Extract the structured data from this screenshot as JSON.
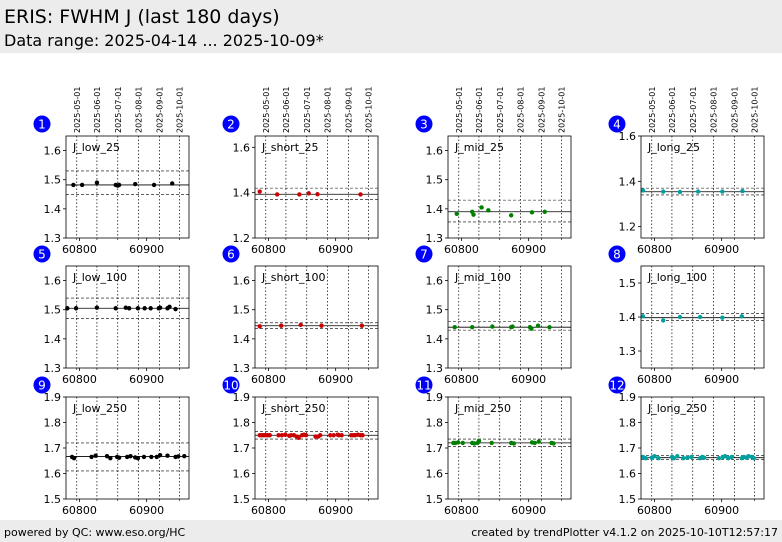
{
  "header": {
    "title": "ERIS: FWHM J (last 180 days)",
    "subtitle": "Data range: 2025-04-14 ... 2025-10-09*"
  },
  "footer": {
    "left": "powered by QC: www.eso.org/HC",
    "right": "created by trendPlotter v4.1.2 on 2025-10-10T12:57:17"
  },
  "date_ticks": [
    "2025-05-01",
    "2025-06-01",
    "2025-07-01",
    "2025-08-01",
    "2025-09-01",
    "2025-10-01"
  ],
  "colors": {
    "J_low": "#000000",
    "J_short": "#cc0000",
    "J_mid": "#008000",
    "J_long": "#00a0a0",
    "badge": "#0000ff"
  },
  "chart_data": [
    {
      "number": "1",
      "type": "scatter",
      "label": "J_low_25",
      "color": "#000000",
      "ylim": [
        1.3,
        1.65
      ],
      "yticks": [
        "1.3",
        "1.4",
        "1.5",
        "1.6"
      ],
      "xlim": [
        60780,
        60963
      ],
      "xticks": [
        "60800",
        "60900"
      ],
      "mean": 1.482,
      "band": [
        1.45,
        1.53
      ],
      "verticals": [
        60796,
        60826,
        60857,
        60888,
        60919,
        60949
      ],
      "x": [
        60791,
        60804,
        60826,
        60854,
        60857,
        60859,
        60883,
        60911,
        60938
      ],
      "y": [
        1.482,
        1.482,
        1.49,
        1.482,
        1.48,
        1.482,
        1.485,
        1.482,
        1.487
      ]
    },
    {
      "number": "2",
      "type": "scatter",
      "label": "J_short_25",
      "color": "#cc0000",
      "ylim": [
        1.2,
        1.65
      ],
      "yticks": [
        "1.2",
        "1.4",
        "1.6"
      ],
      "xlim": [
        60780,
        60963
      ],
      "xticks": [
        "60800",
        "60900"
      ],
      "mean": 1.393,
      "band": [
        1.37,
        1.42
      ],
      "verticals": [
        60796,
        60826,
        60857,
        60888,
        60919,
        60949
      ],
      "x": [
        60787,
        60813,
        60846,
        60860,
        60873,
        60937
      ],
      "y": [
        1.405,
        1.392,
        1.392,
        1.397,
        1.393,
        1.392
      ]
    },
    {
      "number": "3",
      "type": "scatter",
      "label": "J_mid_25",
      "color": "#008000",
      "ylim": [
        1.3,
        1.65
      ],
      "yticks": [
        "1.3",
        "1.4",
        "1.5",
        "1.6"
      ],
      "xlim": [
        60780,
        60963
      ],
      "xticks": [
        "60800",
        "60900"
      ],
      "mean": 1.39,
      "band": [
        1.355,
        1.43
      ],
      "verticals": [
        60796,
        60826,
        60857,
        60888,
        60919,
        60949
      ],
      "x": [
        60793,
        60816,
        60818,
        60830,
        60840,
        60874,
        60905,
        60924
      ],
      "y": [
        1.383,
        1.39,
        1.38,
        1.405,
        1.395,
        1.378,
        1.388,
        1.39
      ]
    },
    {
      "number": "4",
      "type": "scatter",
      "label": "J_long_25",
      "color": "#00a0a0",
      "ylim": [
        1.15,
        1.6
      ],
      "yticks": [
        "1.2",
        "1.4",
        "1.6"
      ],
      "xlim": [
        60780,
        60963
      ],
      "xticks": [
        "60800",
        "60900"
      ],
      "mean": 1.354,
      "band": [
        1.34,
        1.37
      ],
      "verticals": [
        60796,
        60826,
        60857,
        60888,
        60919,
        60949
      ],
      "x": [
        60783,
        60813,
        60838,
        60865,
        60901,
        60931
      ],
      "y": [
        1.36,
        1.355,
        1.353,
        1.355,
        1.355,
        1.357
      ]
    },
    {
      "number": "5",
      "type": "scatter",
      "label": "J_low_100",
      "color": "#000000",
      "ylim": [
        1.3,
        1.65
      ],
      "yticks": [
        "1.3",
        "1.4",
        "1.5",
        "1.6"
      ],
      "xlim": [
        60780,
        60963
      ],
      "xticks": [
        "60800",
        "60900"
      ],
      "mean": 1.505,
      "band": [
        1.47,
        1.54
      ],
      "verticals": [
        60796,
        60826,
        60857,
        60888,
        60919,
        60949
      ],
      "x": [
        60782,
        60795,
        60826,
        60854,
        60869,
        60874,
        60887,
        60897,
        60906,
        60918,
        60920,
        60931,
        60934,
        60943
      ],
      "y": [
        1.505,
        1.505,
        1.507,
        1.505,
        1.507,
        1.505,
        1.505,
        1.505,
        1.505,
        1.505,
        1.507,
        1.505,
        1.51,
        1.502
      ]
    },
    {
      "number": "6",
      "type": "scatter",
      "label": "J_short_100",
      "color": "#cc0000",
      "ylim": [
        1.3,
        1.65
      ],
      "yticks": [
        "1.3",
        "1.4",
        "1.5",
        "1.6"
      ],
      "xlim": [
        60780,
        60963
      ],
      "xticks": [
        "60800",
        "60900"
      ],
      "mean": 1.445,
      "band": [
        1.435,
        1.455
      ],
      "verticals": [
        60796,
        60826,
        60857,
        60888,
        60919,
        60949
      ],
      "x": [
        60787,
        60819,
        60848,
        60879,
        60939
      ],
      "y": [
        1.443,
        1.445,
        1.448,
        1.445,
        1.445
      ]
    },
    {
      "number": "7",
      "type": "scatter",
      "label": "J_mid_100",
      "color": "#008000",
      "ylim": [
        1.3,
        1.65
      ],
      "yticks": [
        "1.3",
        "1.4",
        "1.5",
        "1.6"
      ],
      "xlim": [
        60780,
        60963
      ],
      "xticks": [
        "60800",
        "60900"
      ],
      "mean": 1.44,
      "band": [
        1.43,
        1.46
      ],
      "verticals": [
        60796,
        60826,
        60857,
        60888,
        60919,
        60949
      ],
      "x": [
        60790,
        60816,
        60846,
        60874,
        60876,
        60902,
        60904,
        60914,
        60931
      ],
      "y": [
        1.44,
        1.44,
        1.442,
        1.44,
        1.442,
        1.44,
        1.435,
        1.445,
        1.44
      ]
    },
    {
      "number": "8",
      "type": "scatter",
      "label": "J_long_100",
      "color": "#00a0a0",
      "ylim": [
        1.25,
        1.55
      ],
      "yticks": [
        "1.3",
        "1.4",
        "1.5"
      ],
      "xlim": [
        60780,
        60963
      ],
      "xticks": [
        "60800",
        "60900"
      ],
      "mean": 1.398,
      "band": [
        1.39,
        1.41
      ],
      "verticals": [
        60796,
        60826,
        60857,
        60888,
        60919,
        60949
      ],
      "x": [
        60783,
        60813,
        60838,
        60868,
        60901,
        60930
      ],
      "y": [
        1.402,
        1.39,
        1.4,
        1.4,
        1.398,
        1.402
      ]
    },
    {
      "number": "9",
      "type": "scatter",
      "label": "J_low_250",
      "color": "#000000",
      "ylim": [
        1.5,
        1.9
      ],
      "yticks": [
        "1.5",
        "1.6",
        "1.7",
        "1.8",
        "1.9"
      ],
      "xlim": [
        60780,
        60963
      ],
      "xticks": [
        "60800",
        "60900"
      ],
      "mean": 1.667,
      "band": [
        1.61,
        1.72
      ],
      "verticals": [
        60796,
        60826,
        60857,
        60888,
        60919,
        60949
      ],
      "x": [
        60789,
        60792,
        60818,
        60824,
        60841,
        60846,
        60856,
        60859,
        60871,
        60876,
        60883,
        60887,
        60896,
        60907,
        60915,
        60920,
        60931,
        60943,
        60947,
        60956
      ],
      "y": [
        1.665,
        1.66,
        1.665,
        1.67,
        1.668,
        1.66,
        1.665,
        1.662,
        1.665,
        1.668,
        1.663,
        1.66,
        1.665,
        1.665,
        1.665,
        1.672,
        1.67,
        1.665,
        1.667,
        1.668
      ]
    },
    {
      "number": "10",
      "type": "scatter",
      "label": "J_short_250",
      "color": "#cc0000",
      "ylim": [
        1.5,
        1.9
      ],
      "yticks": [
        "1.5",
        "1.6",
        "1.7",
        "1.8",
        "1.9"
      ],
      "xlim": [
        60780,
        60963
      ],
      "xticks": [
        "60800",
        "60900"
      ],
      "mean": 1.75,
      "band": [
        1.735,
        1.765
      ],
      "verticals": [
        60796,
        60826,
        60857,
        60888,
        60919,
        60949
      ],
      "x": [
        60787,
        60790,
        60793,
        60796,
        60799,
        60802,
        60815,
        60820,
        60825,
        60831,
        60834,
        60838,
        60842,
        60845,
        60850,
        60853,
        60856,
        60870,
        60874,
        60877,
        60892,
        60897,
        60903,
        60905,
        60909,
        60923,
        60926,
        60929,
        60933,
        60937,
        60940
      ],
      "y": [
        1.75,
        1.75,
        1.75,
        1.75,
        1.75,
        1.75,
        1.75,
        1.75,
        1.752,
        1.748,
        1.75,
        1.75,
        1.745,
        1.74,
        1.75,
        1.752,
        1.75,
        1.745,
        1.745,
        1.75,
        1.75,
        1.75,
        1.752,
        1.75,
        1.75,
        1.75,
        1.75,
        1.75,
        1.752,
        1.75,
        1.75
      ]
    },
    {
      "number": "11",
      "type": "scatter",
      "label": "J_mid_250",
      "color": "#008000",
      "ylim": [
        1.5,
        1.9
      ],
      "yticks": [
        "1.5",
        "1.6",
        "1.7",
        "1.8",
        "1.9"
      ],
      "xlim": [
        60780,
        60963
      ],
      "xticks": [
        "60800",
        "60900"
      ],
      "mean": 1.72,
      "band": [
        1.705,
        1.735
      ],
      "verticals": [
        60796,
        60826,
        60857,
        60888,
        60919,
        60949
      ],
      "x": [
        60788,
        60791,
        60795,
        60802,
        60816,
        60819,
        60824,
        60826,
        60845,
        60874,
        60878,
        60905,
        60909,
        60915,
        60934,
        60937
      ],
      "y": [
        1.72,
        1.72,
        1.722,
        1.72,
        1.72,
        1.718,
        1.72,
        1.728,
        1.72,
        1.72,
        1.718,
        1.722,
        1.72,
        1.725,
        1.72,
        1.718
      ]
    },
    {
      "number": "12",
      "type": "scatter",
      "label": "J_long_250",
      "color": "#00a0a0",
      "ylim": [
        1.5,
        1.9
      ],
      "yticks": [
        "1.5",
        "1.6",
        "1.7",
        "1.8",
        "1.9"
      ],
      "xlim": [
        60780,
        60963
      ],
      "xticks": [
        "60800",
        "60900"
      ],
      "mean": 1.662,
      "band": [
        1.655,
        1.67
      ],
      "verticals": [
        60796,
        60826,
        60857,
        60888,
        60919,
        60949
      ],
      "x": [
        60783,
        60787,
        60796,
        60800,
        60806,
        60826,
        60829,
        60834,
        60843,
        60849,
        60855,
        60868,
        60871,
        60874,
        60896,
        60902,
        60905,
        60910,
        60915,
        60930,
        60933,
        60937,
        60940,
        60945,
        60948
      ],
      "y": [
        1.665,
        1.66,
        1.662,
        1.668,
        1.66,
        1.665,
        1.66,
        1.668,
        1.66,
        1.662,
        1.665,
        1.66,
        1.665,
        1.662,
        1.66,
        1.665,
        1.668,
        1.66,
        1.665,
        1.66,
        1.665,
        1.662,
        1.668,
        1.665,
        1.66
      ]
    }
  ]
}
